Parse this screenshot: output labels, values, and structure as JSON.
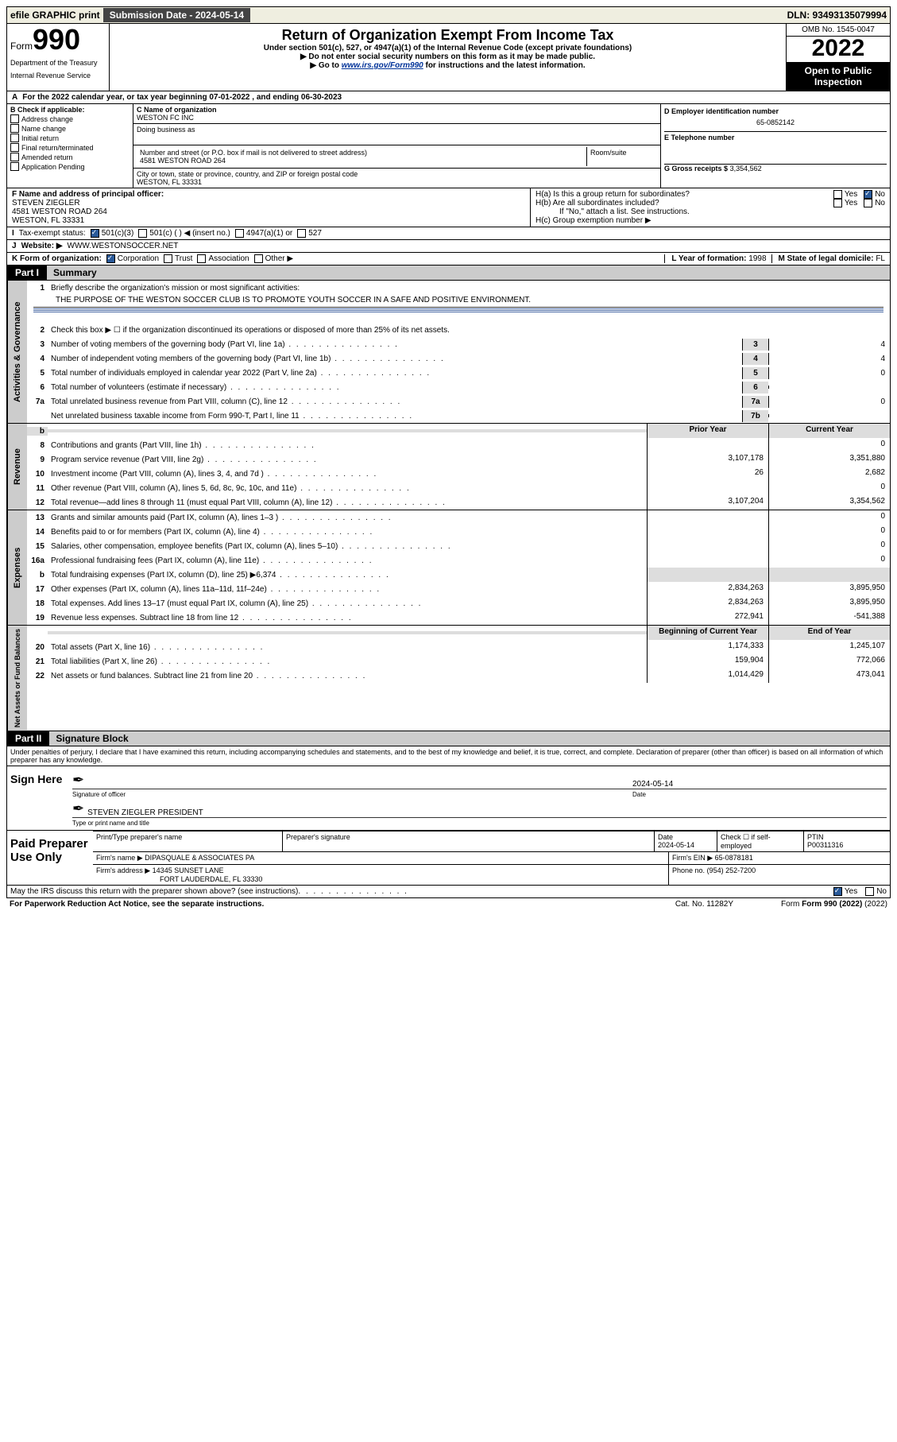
{
  "topbar": {
    "efile": "efile GRAPHIC print",
    "submission_label": "Submission Date - 2024-05-14",
    "dln": "DLN: 93493135079994"
  },
  "header": {
    "form_word": "Form",
    "form_num": "990",
    "dept1": "Department of the Treasury",
    "dept2": "Internal Revenue Service",
    "title": "Return of Organization Exempt From Income Tax",
    "subtitle": "Under section 501(c), 527, or 4947(a)(1) of the Internal Revenue Code (except private foundations)",
    "warn": "▶ Do not enter social security numbers on this form as it may be made public.",
    "goto_pre": "▶ Go to ",
    "goto_link": "www.irs.gov/Form990",
    "goto_post": " for instructions and the latest information.",
    "omb": "OMB No. 1545-0047",
    "year": "2022",
    "open": "Open to Public Inspection"
  },
  "A": {
    "line": "For the 2022 calendar year, or tax year beginning 07-01-2022   , and ending 06-30-2023"
  },
  "B": {
    "title": "B Check if applicable:",
    "opts": [
      "Address change",
      "Name change",
      "Initial return",
      "Final return/terminated",
      "Amended return",
      "Application Pending"
    ]
  },
  "C": {
    "label": "C Name of organization",
    "name": "WESTON FC INC",
    "dba_label": "Doing business as",
    "addr_label": "Number and street (or P.O. box if mail is not delivered to street address)",
    "room": "Room/suite",
    "addr": "4581 WESTON ROAD 264",
    "city_label": "City or town, state or province, country, and ZIP or foreign postal code",
    "city": "WESTON, FL  33331"
  },
  "D": {
    "label": "D Employer identification number",
    "val": "65-0852142"
  },
  "E": {
    "label": "E Telephone number",
    "val": ""
  },
  "G": {
    "label": "G Gross receipts $",
    "val": "3,354,562"
  },
  "F": {
    "label": "F  Name and address of principal officer:",
    "name": "STEVEN ZIEGLER",
    "addr1": "4581 WESTON ROAD 264",
    "addr2": "WESTON, FL  33331"
  },
  "H": {
    "a": "H(a)  Is this a group return for subordinates?",
    "b": "H(b)  Are all subordinates included?",
    "b_note": "If \"No,\" attach a list. See instructions.",
    "c": "H(c)  Group exemption number ▶",
    "yes": "Yes",
    "no": "No"
  },
  "I": {
    "label": "Tax-exempt status:",
    "o1": "501(c)(3)",
    "o2": "501(c) (   ) ◀ (insert no.)",
    "o3": "4947(a)(1) or",
    "o4": "527"
  },
  "J": {
    "label": "Website: ▶",
    "val": "WWW.WESTONSOCCER.NET"
  },
  "K": {
    "label": "K Form of organization:",
    "o1": "Corporation",
    "o2": "Trust",
    "o3": "Association",
    "o4": "Other ▶"
  },
  "L": {
    "label": "L Year of formation:",
    "val": "1998"
  },
  "M": {
    "label": "M State of legal domicile:",
    "val": "FL"
  },
  "part1": {
    "header": "Part I",
    "title": "Summary",
    "l1": "Briefly describe the organization's mission or most significant activities:",
    "mission": "THE PURPOSE OF THE WESTON SOCCER CLUB IS TO PROMOTE YOUTH SOCCER IN A SAFE AND POSITIVE ENVIRONMENT.",
    "l2": "Check this box ▶ ☐  if the organization discontinued its operations or disposed of more than 25% of its net assets.",
    "rows_ag": [
      {
        "n": "3",
        "d": "Number of voting members of the governing body (Part VI, line 1a)",
        "box": "3",
        "v": "4"
      },
      {
        "n": "4",
        "d": "Number of independent voting members of the governing body (Part VI, line 1b)",
        "box": "4",
        "v": "4"
      },
      {
        "n": "5",
        "d": "Total number of individuals employed in calendar year 2022 (Part V, line 2a)",
        "box": "5",
        "v": "0"
      },
      {
        "n": "6",
        "d": "Total number of volunteers (estimate if necessary)",
        "box": "6",
        "v": ""
      },
      {
        "n": "7a",
        "d": "Total unrelated business revenue from Part VIII, column (C), line 12",
        "box": "7a",
        "v": "0"
      },
      {
        "n": "",
        "d": "Net unrelated business taxable income from Form 990-T, Part I, line 11",
        "box": "7b",
        "v": ""
      }
    ],
    "col_prior": "Prior Year",
    "col_current": "Current Year",
    "rows_rev": [
      {
        "n": "8",
        "d": "Contributions and grants (Part VIII, line 1h)",
        "p": "",
        "c": "0"
      },
      {
        "n": "9",
        "d": "Program service revenue (Part VIII, line 2g)",
        "p": "3,107,178",
        "c": "3,351,880"
      },
      {
        "n": "10",
        "d": "Investment income (Part VIII, column (A), lines 3, 4, and 7d )",
        "p": "26",
        "c": "2,682"
      },
      {
        "n": "11",
        "d": "Other revenue (Part VIII, column (A), lines 5, 6d, 8c, 9c, 10c, and 11e)",
        "p": "",
        "c": "0"
      },
      {
        "n": "12",
        "d": "Total revenue—add lines 8 through 11 (must equal Part VIII, column (A), line 12)",
        "p": "3,107,204",
        "c": "3,354,562"
      }
    ],
    "rows_exp": [
      {
        "n": "13",
        "d": "Grants and similar amounts paid (Part IX, column (A), lines 1–3 )",
        "p": "",
        "c": "0"
      },
      {
        "n": "14",
        "d": "Benefits paid to or for members (Part IX, column (A), line 4)",
        "p": "",
        "c": "0"
      },
      {
        "n": "15",
        "d": "Salaries, other compensation, employee benefits (Part IX, column (A), lines 5–10)",
        "p": "",
        "c": "0"
      },
      {
        "n": "16a",
        "d": "Professional fundraising fees (Part IX, column (A), line 11e)",
        "p": "",
        "c": "0"
      },
      {
        "n": "b",
        "d": "Total fundraising expenses (Part IX, column (D), line 25) ▶6,374",
        "p": "SHADE",
        "c": "SHADE"
      },
      {
        "n": "17",
        "d": "Other expenses (Part IX, column (A), lines 11a–11d, 11f–24e)",
        "p": "2,834,263",
        "c": "3,895,950"
      },
      {
        "n": "18",
        "d": "Total expenses. Add lines 13–17 (must equal Part IX, column (A), line 25)",
        "p": "2,834,263",
        "c": "3,895,950"
      },
      {
        "n": "19",
        "d": "Revenue less expenses. Subtract line 18 from line 12",
        "p": "272,941",
        "c": "-541,388"
      }
    ],
    "col_boy": "Beginning of Current Year",
    "col_eoy": "End of Year",
    "rows_net": [
      {
        "n": "20",
        "d": "Total assets (Part X, line 16)",
        "p": "1,174,333",
        "c": "1,245,107"
      },
      {
        "n": "21",
        "d": "Total liabilities (Part X, line 26)",
        "p": "159,904",
        "c": "772,066"
      },
      {
        "n": "22",
        "d": "Net assets or fund balances. Subtract line 21 from line 20",
        "p": "1,014,429",
        "c": "473,041"
      }
    ],
    "tab_ag": "Activities & Governance",
    "tab_rev": "Revenue",
    "tab_exp": "Expenses",
    "tab_net": "Net Assets or Fund Balances"
  },
  "part2": {
    "header": "Part II",
    "title": "Signature Block",
    "perjury": "Under penalties of perjury, I declare that I have examined this return, including accompanying schedules and statements, and to the best of my knowledge and belief, it is true, correct, and complete. Declaration of preparer (other than officer) is based on all information of which preparer has any knowledge.",
    "sign_here": "Sign Here",
    "sig_officer": "Signature of officer",
    "date_label": "Date",
    "date": "2024-05-14",
    "officer_name": "STEVEN ZIEGLER  PRESIDENT",
    "type_name": "Type or print name and title",
    "paid": "Paid Preparer Use Only",
    "pt_name_label": "Print/Type preparer's name",
    "pt_sig_label": "Preparer's signature",
    "pt_date_label": "Date",
    "pt_date": "2024-05-14",
    "pt_check": "Check ☐ if self-employed",
    "ptin_label": "PTIN",
    "ptin": "P00311316",
    "firm_name_label": "Firm's name    ▶",
    "firm_name": "DIPASQUALE & ASSOCIATES PA",
    "firm_ein_label": "Firm's EIN ▶",
    "firm_ein": "65-0878181",
    "firm_addr_label": "Firm's address ▶",
    "firm_addr1": "14345 SUNSET LANE",
    "firm_addr2": "FORT LAUDERDALE, FL  33330",
    "phone_label": "Phone no.",
    "phone": "(954) 252-7200",
    "discuss": "May the IRS discuss this return with the preparer shown above? (see instructions)",
    "yes": "Yes",
    "no": "No"
  },
  "footer": {
    "pra": "For Paperwork Reduction Act Notice, see the separate instructions.",
    "cat": "Cat. No. 11282Y",
    "form": "Form 990 (2022)"
  }
}
